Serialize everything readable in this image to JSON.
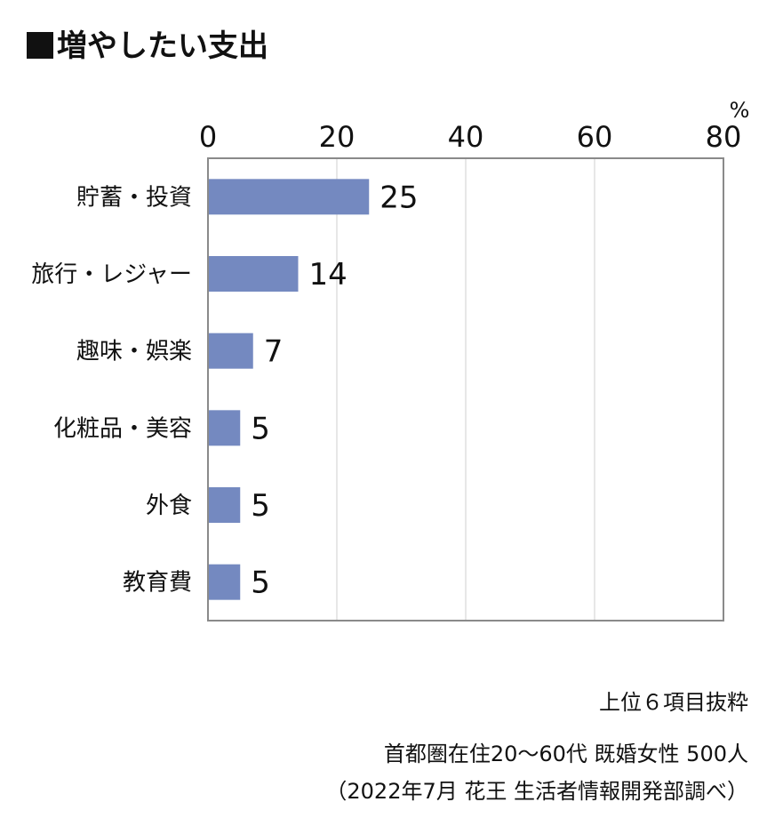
{
  "title": "増やしたい支出",
  "chart_data": {
    "type": "bar",
    "orientation": "horizontal",
    "title": "増やしたい支出",
    "unit": "%",
    "categories": [
      "貯蓄・投資",
      "旅行・レジャー",
      "趣味・娯楽",
      "化粧品・美容",
      "外食",
      "教育費"
    ],
    "values": [
      25,
      14,
      7,
      5,
      5,
      5
    ],
    "xlim": [
      0,
      80
    ],
    "x_ticks": [
      0,
      20,
      40,
      60,
      80
    ],
    "grid": true,
    "bar_color": "#7489c0",
    "data_labels": true
  },
  "notes": {
    "selection": "上位６項目抜粋",
    "survey": "首都圏在住20〜60代 既婚女性 500人",
    "source": "（2022年7月 花王 生活者情報開発部調べ）"
  }
}
